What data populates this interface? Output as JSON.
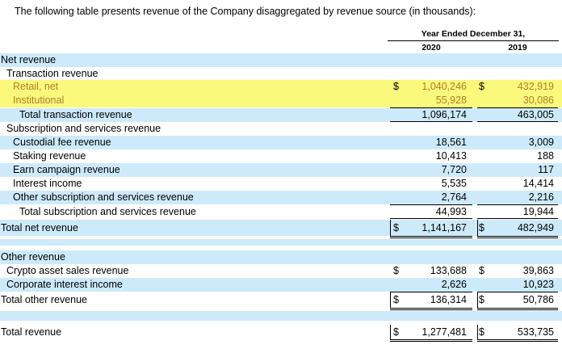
{
  "caption": "The following table presents revenue of the Company disaggregated by revenue source (in thousands):",
  "header": {
    "period": "Year Ended December 31,",
    "col1": "2020",
    "col2": "2019"
  },
  "currency": "$",
  "rows": [
    {
      "label": "Net revenue",
      "v1": "",
      "v2": ""
    },
    {
      "label": "Transaction revenue",
      "v1": "",
      "v2": ""
    },
    {
      "label": "Retail, net",
      "v1": "1,040,246",
      "v2": "432,919"
    },
    {
      "label": "Institutional",
      "v1": "55,928",
      "v2": "30,086"
    },
    {
      "label": "Total transaction revenue",
      "v1": "1,096,174",
      "v2": "463,005"
    },
    {
      "label": "Subscription and services revenue",
      "v1": "",
      "v2": ""
    },
    {
      "label": "Custodial fee revenue",
      "v1": "18,561",
      "v2": "3,009"
    },
    {
      "label": "Staking revenue",
      "v1": "10,413",
      "v2": "188"
    },
    {
      "label": "Earn campaign revenue",
      "v1": "7,720",
      "v2": "117"
    },
    {
      "label": "Interest income",
      "v1": "5,535",
      "v2": "14,414"
    },
    {
      "label": "Other subscription and services revenue",
      "v1": "2,764",
      "v2": "2,216"
    },
    {
      "label": "Total subscription and services revenue",
      "v1": "44,993",
      "v2": "19,944"
    },
    {
      "label": "Total net revenue",
      "v1": "1,141,167",
      "v2": "482,949"
    },
    {
      "label": "Other revenue",
      "v1": "",
      "v2": ""
    },
    {
      "label": "Crypto asset sales revenue",
      "v1": "133,688",
      "v2": "39,863"
    },
    {
      "label": "Corporate interest income",
      "v1": "2,626",
      "v2": "10,923"
    },
    {
      "label": "Total other revenue",
      "v1": "136,314",
      "v2": "50,786"
    },
    {
      "label": "Total revenue",
      "v1": "1,277,481",
      "v2": "533,735"
    }
  ]
}
